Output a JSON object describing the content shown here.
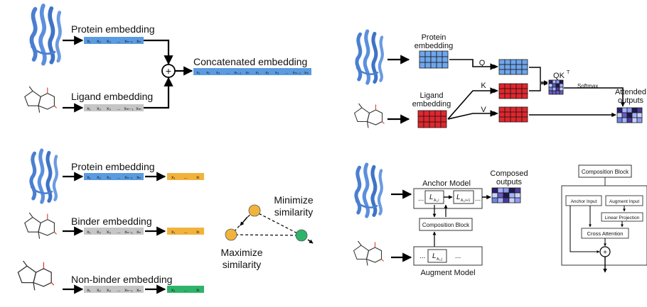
{
  "panel_a": {
    "protein_label": "Protein embedding",
    "protein_tokens": [
      "x₁",
      "x₂",
      "x₃",
      "...",
      "xₙ₋₁",
      "xₙ"
    ],
    "ligand_label": "Ligand embedding",
    "ligand_tokens": [
      "x₁",
      "x₂",
      "x₃",
      "...",
      "xₘ₋₁",
      "xₘ"
    ],
    "plus_symbol": "+",
    "concat_label": "Concatenated embedding",
    "concat_tokens": [
      "x₁",
      "x₂",
      "x₃",
      "...",
      "xₙ₋₁",
      "xₙ",
      "x₁",
      "x₂",
      "x₃",
      "...",
      "xₘ₋₁",
      "xₘ"
    ]
  },
  "panel_b": {
    "protein_label_1": "Protein",
    "protein_label_2": "embedding",
    "ligand_label_1": "Ligand",
    "ligand_label_2": "embedding",
    "q_label": "Q",
    "k_label": "K",
    "v_label": "V",
    "qk_label": "QK",
    "qk_sup": "T",
    "softmax_label": "Softmax",
    "attended_label_1": "Attended",
    "attended_label_2": "outputs"
  },
  "panel_c": {
    "protein_label": "Protein embedding",
    "protein_tokens": [
      "x₁",
      "x₂",
      "x₃",
      "...",
      "xₙ₋₁",
      "xₙ"
    ],
    "protein_proj": [
      "x₁",
      "...",
      "xₗ"
    ],
    "binder_label": "Binder embedding",
    "binder_tokens": [
      "x₁",
      "x₂",
      "x₃",
      "...",
      "xₙ₋₁",
      "xₙ"
    ],
    "binder_proj": [
      "x₁",
      "...",
      "xₗ"
    ],
    "nonbinder_label": "Non-binder embedding",
    "nonbinder_tokens": [
      "x₁",
      "x₂",
      "x₃",
      "...",
      "xₙ₋₁",
      "xₙ"
    ],
    "nonbinder_proj": [
      "x₁",
      "...",
      "xₗ"
    ],
    "minimize_1": "Minimize",
    "minimize_2": "similarity",
    "maximize_1": "Maximize",
    "maximize_2": "similarity"
  },
  "panel_d": {
    "anchor_label": "Anchor Model",
    "layer_1": "L",
    "layer_1_sub": "A₁,i",
    "layer_2": "L",
    "layer_2_sub": "A₁,i+1",
    "dots": "...",
    "composition_label": "Composition Block",
    "augment_layer": "L",
    "augment_layer_sub": "A₂,j",
    "augment_label": "Augment Model",
    "composed_label_1": "Composed",
    "composed_label_2": "outputs"
  },
  "panel_e": {
    "title": "Composition Block",
    "anchor_input": "Anchor Input",
    "augment_input": "Augment Input",
    "linear_projection": "Linear Projection",
    "cross_attention": "Cross Attention",
    "plus_symbol": "+"
  },
  "colors": {
    "blue_token": "#5b9be0",
    "gray_token": "#c6c6c6",
    "orange_token": "#f2b33d",
    "green_token": "#2fb36a",
    "blue_grid": "#6fa6ec",
    "red_grid": "#e2262d",
    "protein_structure": "#4a7fd0",
    "ligand_bond": "#333333",
    "ligand_oxygen": "#e0392b"
  }
}
